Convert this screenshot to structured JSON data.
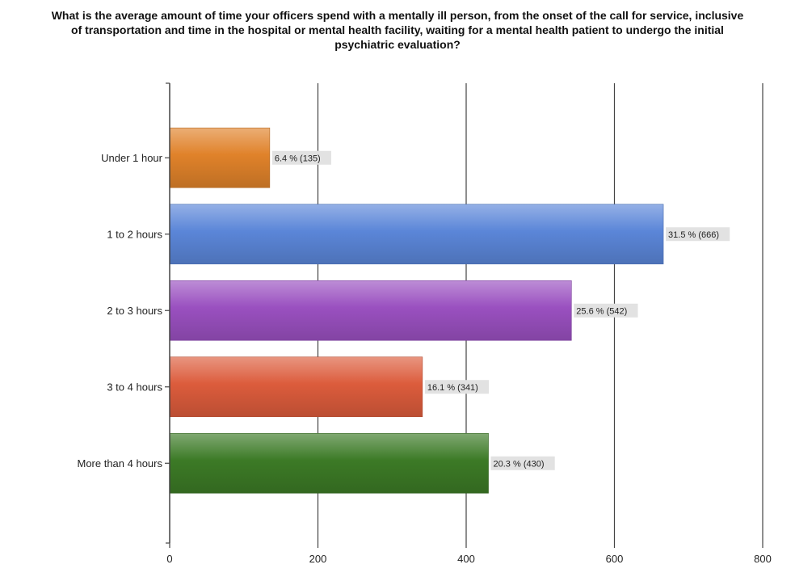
{
  "chart_data": {
    "type": "bar",
    "orientation": "horizontal",
    "title": "What is the average amount of time your officers spend with a mentally ill person, from the onset of the call for service, inclusive of transportation and time in the hospital or mental health facility, waiting for a mental health patient to undergo the initial psychiatric evaluation?",
    "categories": [
      "Under 1 hour",
      "1 to 2 hours",
      "2 to 3 hours",
      "3 to 4 hours",
      "More than 4 hours"
    ],
    "values": [
      135,
      666,
      542,
      341,
      430
    ],
    "data_labels": [
      "6.4 % (135)",
      "31.5 % (666)",
      "25.6 % (542)",
      "16.1 % (341)",
      "20.3 % (430)"
    ],
    "colors": [
      "#e0822a",
      "#5b86d8",
      "#9a50c0",
      "#dc5c3c",
      "#3c7a26"
    ],
    "xlim": [
      0,
      800
    ],
    "xticks": [
      "0",
      "200",
      "400",
      "600",
      "800"
    ],
    "grid": true,
    "legend": "none"
  }
}
